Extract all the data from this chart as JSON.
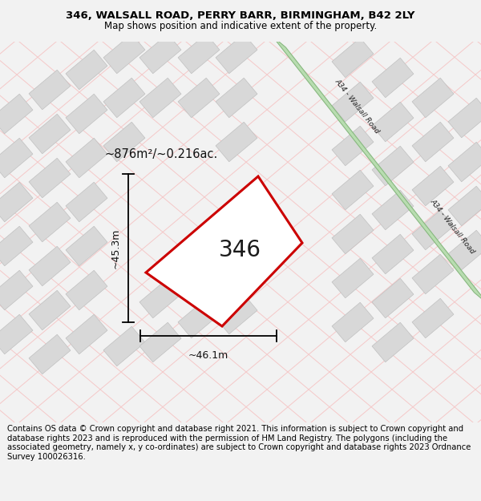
{
  "title_line1": "346, WALSALL ROAD, PERRY BARR, BIRMINGHAM, B42 2LY",
  "title_line2": "Map shows position and indicative extent of the property.",
  "footer_text": "Contains OS data © Crown copyright and database right 2021. This information is subject to Crown copyright and database rights 2023 and is reproduced with the permission of HM Land Registry. The polygons (including the associated geometry, namely x, y co-ordinates) are subject to Crown copyright and database rights 2023 Ordnance Survey 100026316.",
  "area_text": "~876m²/~0.216ac.",
  "label_346": "346",
  "dim_width": "~46.1m",
  "dim_height": "~45.3m",
  "road_label1": "A34 - Walsall Road",
  "road_label2": "A34 - Walsall Road",
  "bg_color": "#f2f2f2",
  "map_bg": "#ffffff",
  "grid_line_color": "#f5c8c8",
  "building_color": "#d8d8d8",
  "building_edge": "#c0c0c0",
  "road_green_fill": "#b8ddb0",
  "road_green_edge": "#88b880",
  "property_fill": "#ffffff",
  "property_edge": "#cc0000",
  "title_fontsize": 9.5,
  "subtitle_fontsize": 8.5,
  "footer_fontsize": 7.2,
  "annotation_fontsize": 10.5,
  "label_fontsize": 20,
  "dim_fontsize": 9
}
